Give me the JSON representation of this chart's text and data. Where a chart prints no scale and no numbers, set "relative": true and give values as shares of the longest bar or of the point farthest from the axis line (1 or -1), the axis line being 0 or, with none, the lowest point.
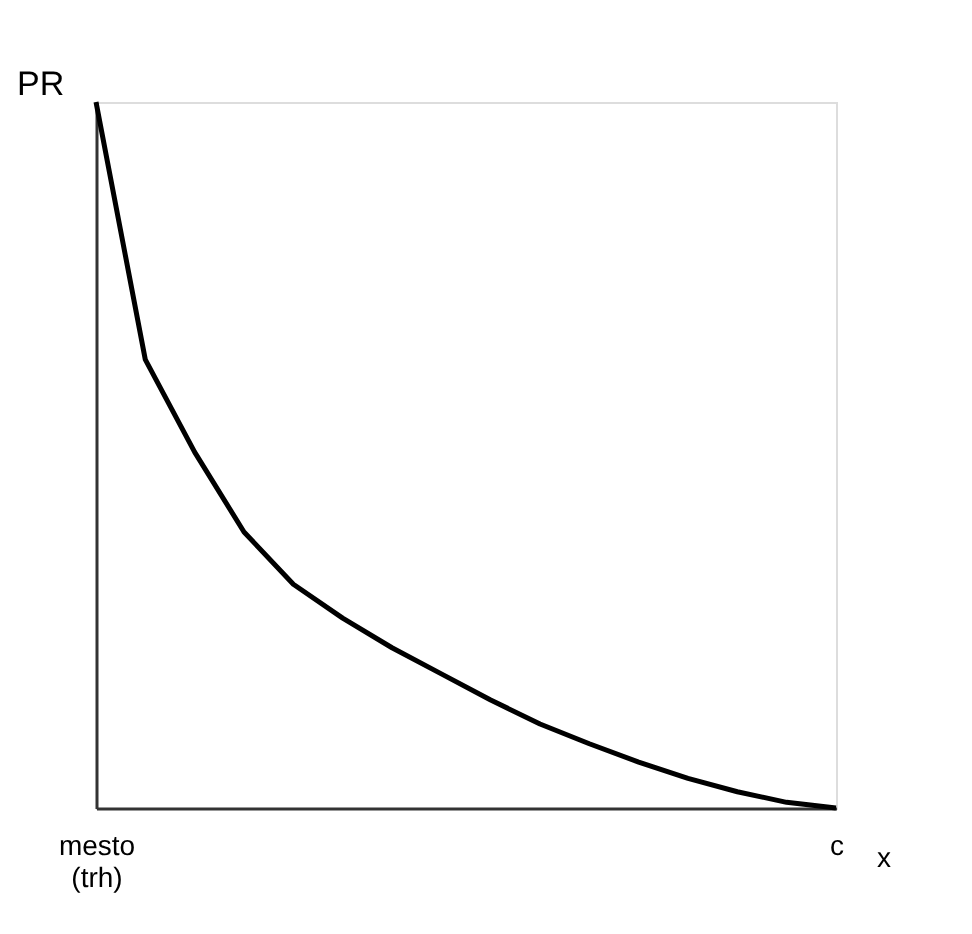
{
  "chart_data": {
    "type": "line",
    "relative": true,
    "ylabel": "PR",
    "xlabel": "x",
    "categories": [
      "mesto (trh)",
      null,
      null,
      null,
      null,
      null,
      null,
      null,
      null,
      null,
      null,
      null,
      null,
      null,
      null,
      "c"
    ],
    "series": [
      {
        "color": "#000000",
        "values": [
          1.0,
          0.635,
          0.504,
          0.391,
          0.317,
          0.269,
          0.227,
          0.19,
          0.153,
          0.119,
          0.091,
          0.065,
          0.042,
          0.023,
          0.008,
          0.0
        ]
      }
    ],
    "grid": false,
    "marker": "none",
    "line_style": "solid"
  }
}
